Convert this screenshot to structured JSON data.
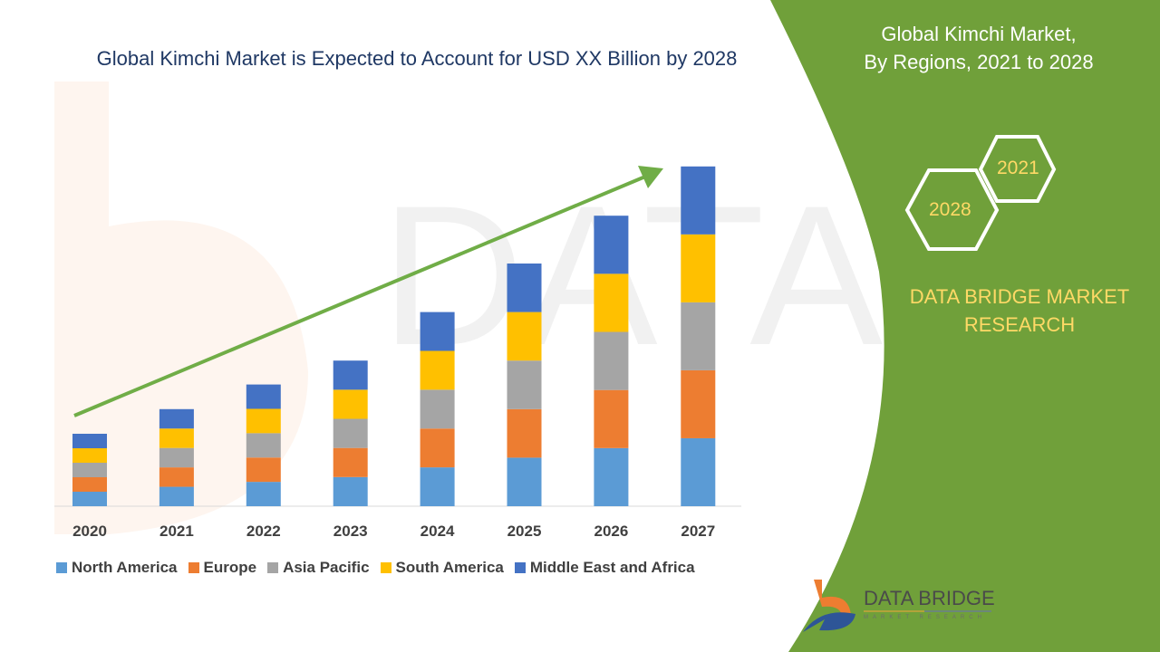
{
  "header": {
    "title": "Global Kimchi Market is Expected to Account for USD XX Billion by 2028"
  },
  "side_panel": {
    "title_line1": "Global Kimchi Market,",
    "title_line2": "By Regions, 2021 to 2028",
    "hex_years": [
      "2021",
      "2028"
    ],
    "brand_line1": "DATA BRIDGE MARKET",
    "brand_line2": "RESEARCH",
    "logo_text": "DATA BRIDGE",
    "logo_sub": "MARKET RESEARCH",
    "panel_color": "#70a03a"
  },
  "chart_data": {
    "type": "bar",
    "stacked": true,
    "title": "",
    "xlabel": "",
    "ylabel": "",
    "y_axis_shown": false,
    "grid": false,
    "legend_placement": "bottom",
    "trend_arrow": true,
    "categories": [
      "2020",
      "2021",
      "2022",
      "2023",
      "2024",
      "2025",
      "2026",
      "2027"
    ],
    "series": [
      {
        "name": "North America",
        "color": "#5b9bd5",
        "values": [
          1.0,
          1.34,
          1.68,
          2.01,
          2.68,
          3.35,
          4.01,
          4.69
        ]
      },
      {
        "name": "Europe",
        "color": "#ed7d31",
        "values": [
          1.0,
          1.34,
          1.68,
          2.01,
          2.68,
          3.35,
          4.01,
          4.69
        ]
      },
      {
        "name": "Asia Pacific",
        "color": "#a5a5a5",
        "values": [
          1.0,
          1.34,
          1.68,
          2.01,
          2.68,
          3.35,
          4.01,
          4.69
        ]
      },
      {
        "name": "South America",
        "color": "#ffc000",
        "values": [
          1.0,
          1.34,
          1.68,
          2.01,
          2.68,
          3.35,
          4.01,
          4.69
        ]
      },
      {
        "name": "Middle East and Africa",
        "color": "#4472c4",
        "values": [
          1.0,
          1.34,
          1.68,
          2.01,
          2.68,
          3.35,
          4.01,
          4.69
        ]
      }
    ]
  }
}
